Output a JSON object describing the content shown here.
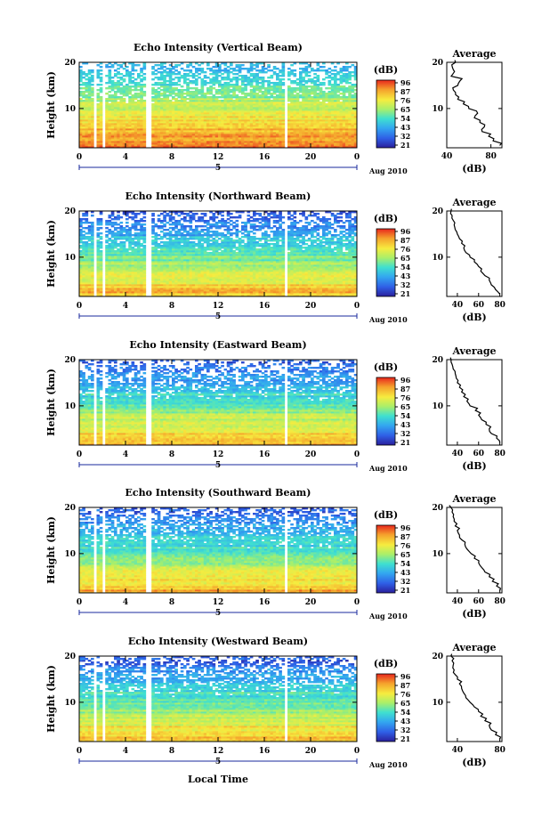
{
  "chart_data": {
    "type": "heatmap",
    "x_label": "Local Time",
    "x_ticks": [
      "0",
      "4",
      "8",
      "12",
      "16",
      "20",
      "0"
    ],
    "date_label": "Aug 2010",
    "date_marker": "5",
    "y_label": "Height (km)",
    "y_ticks": [
      "10",
      "20"
    ],
    "y_range_km": [
      1.5,
      20
    ],
    "x_range_hours": [
      0,
      24
    ],
    "colorbar_unit": "(dB)",
    "colorbar_ticks": [
      "96",
      "87",
      "76",
      "65",
      "54",
      "43",
      "32",
      "21"
    ],
    "colorbar_range_db": [
      21,
      96
    ],
    "data_gaps_hours": [
      [
        1.3,
        1.6
      ],
      [
        2.1,
        2.35
      ],
      [
        5.8,
        6.15
      ],
      [
        17.7,
        17.95
      ]
    ],
    "panels": [
      {
        "title": "Echo Intensity (Vertical Beam)",
        "avg_title": "Average",
        "avg_xlabel": "(dB)",
        "avg_xticks": [
          "40",
          "80"
        ],
        "avg_xlim": [
          40,
          90
        ],
        "avg_profile": {
          "height_km": [
            2,
            3,
            4,
            5,
            6,
            7,
            8,
            9,
            10,
            11,
            12,
            13,
            14,
            15,
            16,
            17,
            18,
            19,
            20
          ],
          "db": [
            88,
            82,
            78,
            72,
            74,
            70,
            65,
            68,
            60,
            55,
            50,
            48,
            46,
            50,
            52,
            44,
            47,
            45,
            48
          ]
        }
      },
      {
        "title": "Echo Intensity (Northward Beam)",
        "avg_title": "Average",
        "avg_xlabel": "(dB)",
        "avg_xticks": [
          "40",
          "60",
          "80"
        ],
        "avg_xlim": [
          30,
          82
        ],
        "avg_profile": {
          "height_km": [
            2,
            3,
            4,
            5,
            6,
            7,
            8,
            9,
            10,
            11,
            12,
            13,
            14,
            15,
            16,
            17,
            18,
            19,
            20
          ],
          "db": [
            80,
            76,
            72,
            70,
            66,
            62,
            60,
            56,
            52,
            48,
            46,
            44,
            42,
            40,
            38,
            37,
            36,
            35,
            34
          ]
        }
      },
      {
        "title": "Echo Intensity (Eastward Beam)",
        "avg_title": "Average",
        "avg_xlabel": "(dB)",
        "avg_xticks": [
          "40",
          "60",
          "80"
        ],
        "avg_xlim": [
          30,
          82
        ],
        "avg_profile": {
          "height_km": [
            2,
            3,
            4,
            5,
            6,
            7,
            8,
            9,
            10,
            11,
            12,
            13,
            14,
            15,
            16,
            17,
            18,
            19,
            20
          ],
          "db": [
            80,
            77,
            72,
            70,
            67,
            63,
            60,
            57,
            52,
            49,
            46,
            44,
            42,
            40,
            39,
            38,
            36,
            35,
            34
          ]
        }
      },
      {
        "title": "Echo Intensity (Southward Beam)",
        "avg_title": "Average",
        "avg_xlabel": "(dB)",
        "avg_xticks": [
          "40",
          "60",
          "80"
        ],
        "avg_xlim": [
          30,
          82
        ],
        "avg_profile": {
          "height_km": [
            2,
            3,
            4,
            5,
            6,
            7,
            8,
            9,
            10,
            11,
            12,
            13,
            14,
            15,
            16,
            17,
            18,
            19,
            20
          ],
          "db": [
            80,
            77,
            73,
            70,
            66,
            63,
            60,
            56,
            53,
            49,
            47,
            44,
            42,
            40,
            38,
            37,
            36,
            35,
            34
          ]
        }
      },
      {
        "title": "Echo Intensity (Westward Beam)",
        "avg_title": "Average",
        "avg_xlabel": "(dB)",
        "avg_xticks": [
          "40",
          "80"
        ],
        "avg_xlim": [
          30,
          82
        ],
        "avg_profile": {
          "height_km": [
            2,
            3,
            4,
            5,
            6,
            7,
            8,
            9,
            10,
            11,
            12,
            13,
            14,
            15,
            16,
            17,
            18,
            19,
            20
          ],
          "db": [
            80,
            76,
            72,
            70,
            66,
            62,
            60,
            56,
            52,
            48,
            46,
            44,
            42,
            40,
            38,
            37,
            36,
            35,
            34
          ]
        }
      }
    ]
  }
}
